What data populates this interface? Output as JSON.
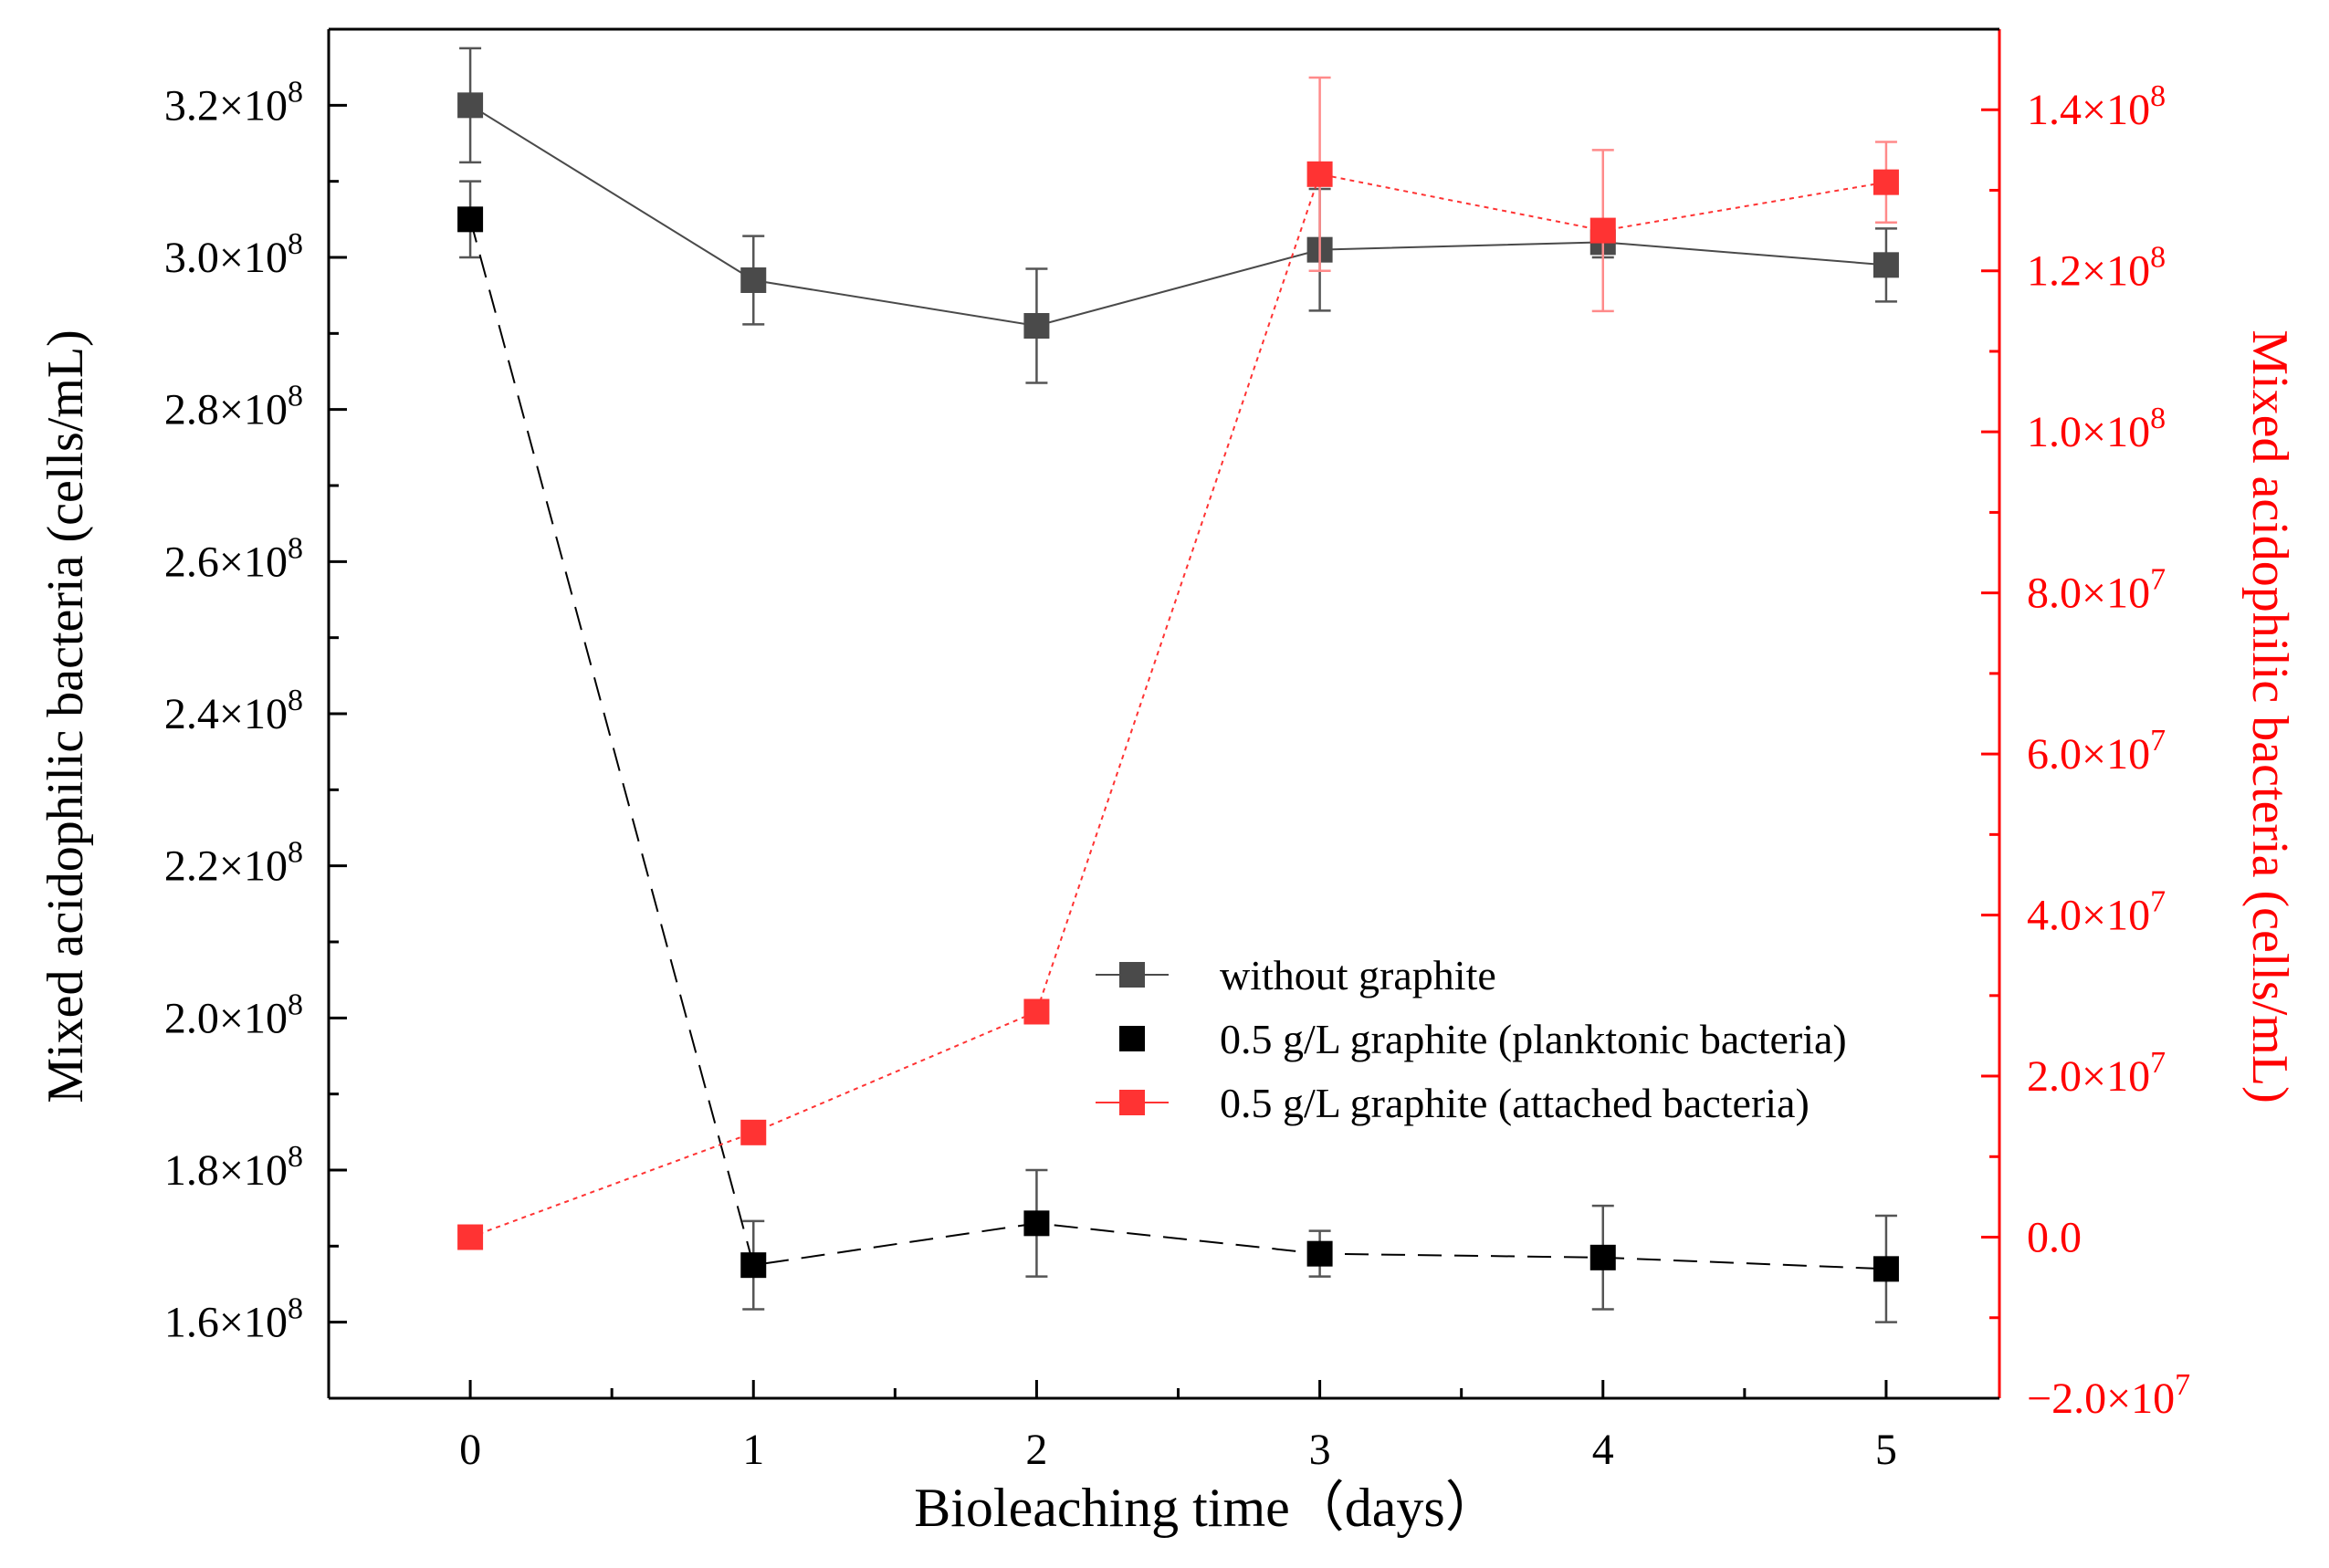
{
  "chart_data": {
    "type": "line",
    "xlabel": "Bioleaching time（days）",
    "x": [
      0,
      1,
      2,
      3,
      4,
      5
    ],
    "xlim": [
      -0.5,
      5.4
    ],
    "x_ticks": [
      "0",
      "1",
      "2",
      "3",
      "4",
      "5"
    ],
    "y_left": {
      "label": "Mixed acidophilic bacteria (cells/mL)",
      "ylim": [
        150000000.0,
        330000000.0
      ],
      "ticks": [
        {
          "value": 160000000.0,
          "mant": "1.6×10",
          "exp": "8"
        },
        {
          "value": 180000000.0,
          "mant": "1.8×10",
          "exp": "8"
        },
        {
          "value": 200000000.0,
          "mant": "2.0×10",
          "exp": "8"
        },
        {
          "value": 220000000.0,
          "mant": "2.2×10",
          "exp": "8"
        },
        {
          "value": 240000000.0,
          "mant": "2.4×10",
          "exp": "8"
        },
        {
          "value": 260000000.0,
          "mant": "2.6×10",
          "exp": "8"
        },
        {
          "value": 280000000.0,
          "mant": "2.8×10",
          "exp": "8"
        },
        {
          "value": 300000000.0,
          "mant": "3.0×10",
          "exp": "8"
        },
        {
          "value": 320000000.0,
          "mant": "3.2×10",
          "exp": "8"
        }
      ]
    },
    "y_right": {
      "label": "Mixed acidophilic bacteria (cells/mL)",
      "ylim": [
        -20000000.0,
        150000000.0
      ],
      "ticks": [
        {
          "value": -20000000.0,
          "mant": "−2.0×10",
          "exp": "7"
        },
        {
          "value": 0,
          "mant": "0.0",
          "exp": ""
        },
        {
          "value": 20000000.0,
          "mant": "2.0×10",
          "exp": "7"
        },
        {
          "value": 40000000.0,
          "mant": "4.0×10",
          "exp": "7"
        },
        {
          "value": 60000000.0,
          "mant": "6.0×10",
          "exp": "7"
        },
        {
          "value": 80000000.0,
          "mant": "8.0×10",
          "exp": "7"
        },
        {
          "value": 100000000.0,
          "mant": "1.0×10",
          "exp": "8"
        },
        {
          "value": 120000000.0,
          "mant": "1.2×10",
          "exp": "8"
        },
        {
          "value": 140000000.0,
          "mant": "1.4×10",
          "exp": "8"
        }
      ]
    },
    "series": [
      {
        "name": "without graphite",
        "axis": "left",
        "color": "#4a4a4a",
        "line": "solid",
        "values": [
          320000000.0,
          297000000.0,
          291000000.0,
          301000000.0,
          302000000.0,
          299000000.0
        ],
        "errors": [
          7500000.0,
          5800000.0,
          7500000.0,
          8000000.0,
          2000000.0,
          4800000.0
        ]
      },
      {
        "name": "0.5 g/L graphite (planktonic bacteria)",
        "axis": "left",
        "color": "#000000",
        "line": "dashed",
        "values": [
          305000000.0,
          167500000.0,
          173000000.0,
          169000000.0,
          168500000.0,
          167000000.0
        ],
        "errors": [
          5000000.0,
          5800000.0,
          7000000.0,
          3000000.0,
          6800000.0,
          7000000.0
        ]
      },
      {
        "name": "0.5 g/L graphite (attached bacteria)",
        "axis": "right",
        "color": "#ff3333",
        "line": "dotted",
        "values": [
          0,
          13000000.0,
          28000000.0,
          132000000.0,
          125000000.0,
          131000000.0
        ],
        "errors": [
          0,
          0,
          0,
          12000000.0,
          10000000.0,
          5000000.0
        ]
      }
    ],
    "legend_position": "center-right",
    "colors": {
      "axis_left": "#000000",
      "axis_right": "#ff0000"
    }
  }
}
